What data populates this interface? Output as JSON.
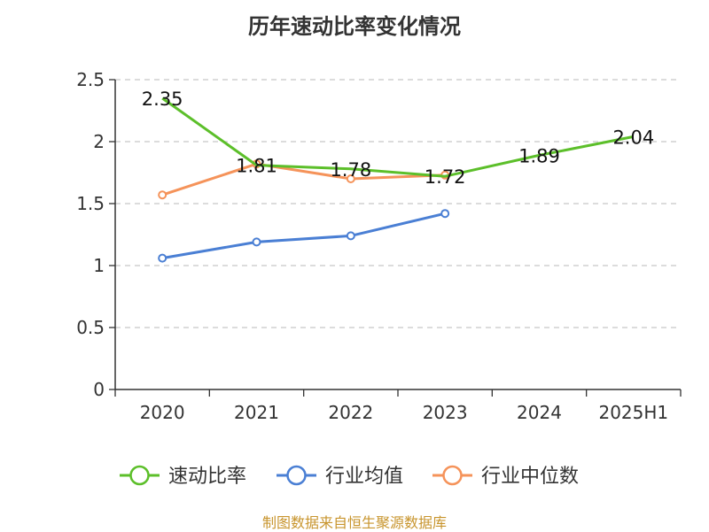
{
  "chart_data": {
    "type": "line",
    "title": "历年速动比率变化情况",
    "categories": [
      "2020",
      "2021",
      "2022",
      "2023",
      "2024",
      "2025H1"
    ],
    "ylim": [
      0,
      2.5
    ],
    "yticks": [
      0,
      0.5,
      1,
      1.5,
      2,
      2.5
    ],
    "ytick_labels": [
      "0",
      "0.5",
      "1",
      "1.5",
      "2",
      "2.5"
    ],
    "grid": true,
    "legend_position": "bottom",
    "series": [
      {
        "name": "速动比率",
        "color": "#5cbf2a",
        "values": [
          2.35,
          1.81,
          1.78,
          1.72,
          1.89,
          2.04
        ],
        "labels": [
          "2.35",
          "1.81",
          "1.78",
          "1.72",
          "1.89",
          "2.04"
        ]
      },
      {
        "name": "行业均值",
        "color": "#4a7fd4",
        "values": [
          1.06,
          1.19,
          1.24,
          1.42,
          null,
          null
        ]
      },
      {
        "name": "行业中位数",
        "color": "#f5935a",
        "values": [
          1.57,
          1.82,
          1.7,
          1.73,
          null,
          null
        ]
      }
    ]
  },
  "footer": {
    "source": "制图数据来自恒生聚源数据库"
  }
}
